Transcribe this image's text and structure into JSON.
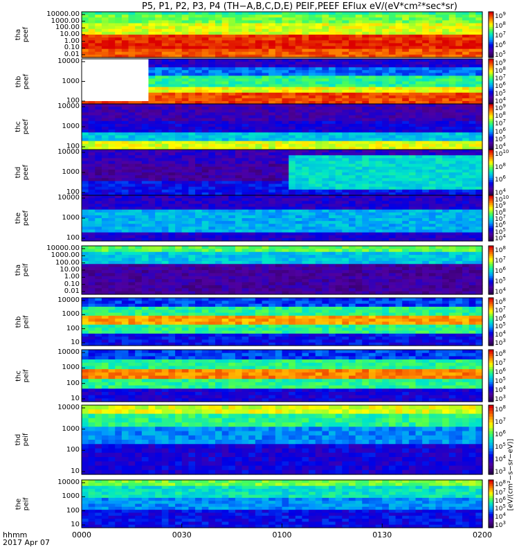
{
  "title": "P5, P1, P2, P3, P4 (TH−A,B,C,D,E) PEIF,PEEF EFlux eV/(eV*cm²*sec*sr)",
  "footer": {
    "line1": "hhmm",
    "line2": "2017 Apr 07"
  },
  "colorbar_unit": "[eV/(cm²−s−sr−eV)]",
  "chart_data": {
    "type": "heatmap",
    "x_ticks": [
      "0000",
      "0030",
      "0100",
      "0130",
      "0200"
    ],
    "panels": [
      {
        "label": [
          "tha",
          "peef"
        ],
        "yticks": [
          "10000.00",
          "1000.00",
          "100.00",
          "10.00",
          "1.00",
          "0.10",
          "0.01"
        ],
        "cbar_exponents": [
          "5",
          "6",
          "7",
          "8",
          "9"
        ]
      },
      {
        "label": [
          "thb",
          "peef"
        ],
        "yticks": [
          "10000",
          "1000",
          "100"
        ],
        "cbar_exponents": [
          "4",
          "5",
          "6",
          "7",
          "8",
          "9"
        ]
      },
      {
        "label": [
          "thc",
          "peef"
        ],
        "yticks": [
          "10000",
          "1000",
          "100"
        ],
        "cbar_exponents": [
          "4",
          "5",
          "6",
          "7",
          "8",
          "9"
        ]
      },
      {
        "label": [
          "thd",
          "peef"
        ],
        "yticks": [
          "10000",
          "1000",
          "100"
        ],
        "cbar_exponents": [
          "4",
          "6",
          "8",
          "10"
        ]
      },
      {
        "label": [
          "the",
          "peef"
        ],
        "yticks": [
          "10000",
          "1000",
          "100"
        ],
        "cbar_exponents": [
          "4",
          "5",
          "6",
          "7",
          "8",
          "9",
          "10"
        ]
      },
      {
        "label": [
          "tha",
          "peif"
        ],
        "yticks": [
          "10000.00",
          "1000.00",
          "100.00",
          "10.00",
          "1.00",
          "0.10",
          "0.01"
        ],
        "cbar_exponents": [
          "4",
          "5",
          "6",
          "7",
          "8"
        ]
      },
      {
        "label": [
          "thb",
          "peif"
        ],
        "yticks": [
          "10000",
          "1000",
          "100",
          "10"
        ],
        "cbar_exponents": [
          "3",
          "4",
          "5",
          "6",
          "7",
          "8"
        ]
      },
      {
        "label": [
          "thc",
          "peif"
        ],
        "yticks": [
          "10000",
          "1000",
          "100",
          "10"
        ],
        "cbar_exponents": [
          "3",
          "4",
          "5",
          "6",
          "7",
          "8"
        ]
      },
      {
        "label": [
          "thd",
          "peif"
        ],
        "yticks": [
          "10000",
          "1000",
          "100",
          "10"
        ],
        "cbar_exponents": [
          "3",
          "4",
          "5",
          "6",
          "7",
          "8"
        ]
      },
      {
        "label": [
          "the",
          "peif"
        ],
        "yticks": [
          "10000",
          "1000",
          "100",
          "10"
        ],
        "cbar_exponents": [
          "3",
          "4",
          "5",
          "6",
          "7",
          "8"
        ]
      }
    ]
  }
}
